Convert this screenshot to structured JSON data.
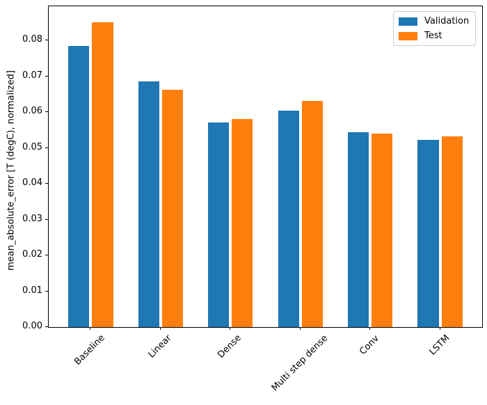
{
  "figure": {
    "background": "#ffffff",
    "spine_color": "#000000"
  },
  "chart_data": {
    "type": "bar",
    "title": "",
    "xlabel": "",
    "ylabel": "mean_absolute_error [T (degC), normalized]",
    "categories": [
      "Baseline",
      "Linear",
      "Dense",
      "Multi step dense",
      "Conv",
      "LSTM"
    ],
    "series": [
      {
        "name": "Validation",
        "color": "#1f77b4",
        "values": [
          0.0785,
          0.0686,
          0.0571,
          0.0605,
          0.0544,
          0.0523
        ]
      },
      {
        "name": "Test",
        "color": "#ff7f0e",
        "values": [
          0.0852,
          0.0662,
          0.0582,
          0.0632,
          0.0541,
          0.0533
        ]
      }
    ],
    "ylim": [
      0,
      0.0896
    ],
    "yticks": [
      0.0,
      0.01,
      0.02,
      0.03,
      0.04,
      0.05,
      0.06,
      0.07,
      0.08
    ],
    "ytick_decimals": 2,
    "xlim": [
      -0.602,
      5.602
    ],
    "bar_width": 0.3,
    "bar_offset": 0.17,
    "xtick_rotation_deg": 45,
    "grid": false,
    "legend_position": "upper right"
  }
}
